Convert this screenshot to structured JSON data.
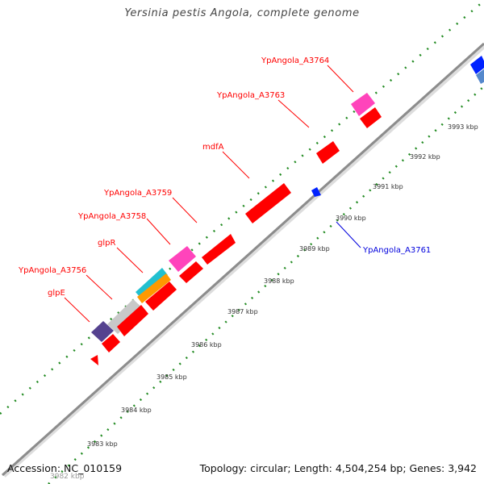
{
  "title": "Yersinia pestis Angola, complete genome",
  "footer": {
    "accession": "Accession: NC_010159",
    "topology": "Topology: circular; Length: 4,504,254 bp; Genes: 3,942"
  },
  "colors": {
    "backbone": "#8c8c8c",
    "tick_marks": "#228b22",
    "label_default": "#ff0000",
    "label_highlight": "#0000dd"
  },
  "scale_ticks": [
    {
      "label": "3983 kbp"
    },
    {
      "label": "3984 kbp"
    },
    {
      "label": "3985 kbp"
    },
    {
      "label": "3986 kbp"
    },
    {
      "label": "3987 kbp"
    },
    {
      "label": "3988 kbp"
    },
    {
      "label": "3989 kbp"
    },
    {
      "label": "3990 kbp"
    },
    {
      "label": "3991 kbp"
    },
    {
      "label": "3992 kbp"
    },
    {
      "label": "3993 kbp"
    }
  ],
  "clipped_tick_label": "3982 kbp",
  "gene_labels": [
    {
      "text": "glpE",
      "color": "#ff0000"
    },
    {
      "text": "YpAngola_A3756",
      "color": "#ff0000"
    },
    {
      "text": "glpR",
      "color": "#ff0000"
    },
    {
      "text": "YpAngola_A3758",
      "color": "#ff0000"
    },
    {
      "text": "YpAngola_A3759",
      "color": "#ff0000"
    },
    {
      "text": "mdfA",
      "color": "#ff0000"
    },
    {
      "text": "YpAngola_A3763",
      "color": "#ff0000"
    },
    {
      "text": "YpAngola_A3764",
      "color": "#ff0000"
    },
    {
      "text": "YpAngola_A3761",
      "color": "#0000dd"
    }
  ],
  "genes": [
    {
      "name": "glpE",
      "color": "#55428f"
    },
    {
      "name": "YpAngola_A3756",
      "color": "#c8c8c8"
    },
    {
      "name": "glpR",
      "color": "#22c0d0"
    },
    {
      "name": "YpAngola_A3758",
      "color": "#ff44bb"
    },
    {
      "name": "YpAngola_A3759",
      "color": "#ff0000"
    },
    {
      "name": "mdfA",
      "color": "#ff0000"
    },
    {
      "name": "YpAngola_A3763",
      "color": "#ff0000"
    },
    {
      "name": "YpAngola_A3764",
      "color": "#ff44bb"
    },
    {
      "name": "YpAngola_A3761",
      "color": "#0022ff"
    }
  ]
}
